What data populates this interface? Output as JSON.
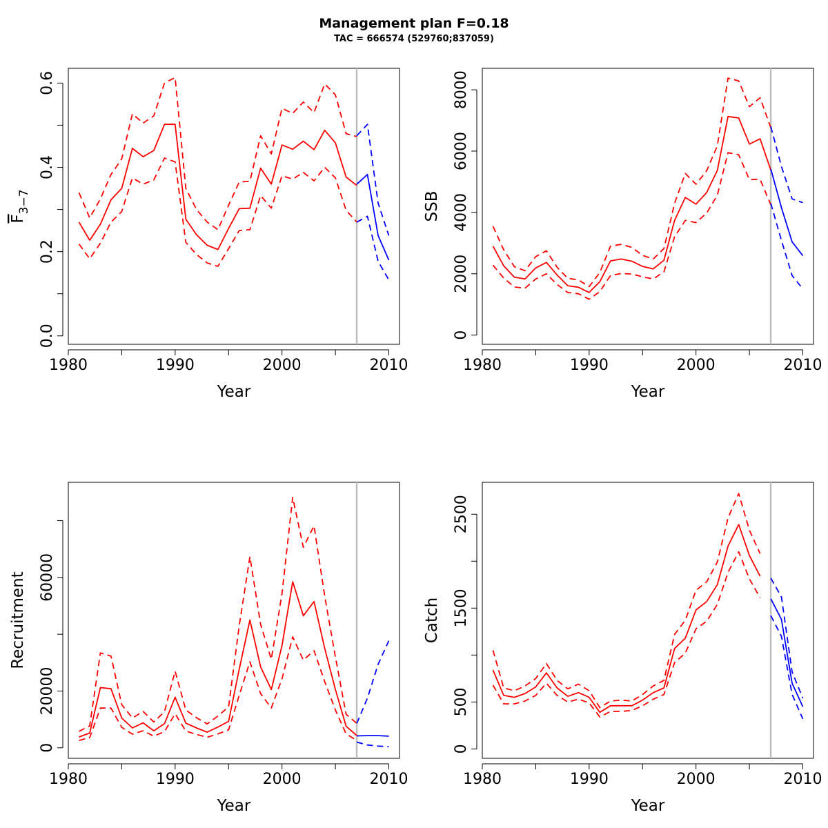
{
  "figure": {
    "title": "Management plan F=0.18",
    "subtitle": "TAC = 666574 (529760;837059)"
  },
  "colors": {
    "history": "#ff0000",
    "projection": "#0000ff",
    "divider": "#bebebe",
    "frame": "#000000"
  },
  "chart_data": [
    {
      "type": "line",
      "id": "fbar",
      "xlabel": "Year",
      "ylabel_main": "F",
      "ylabel_sub": "3−7",
      "ylabel_overline": true,
      "xlim": [
        1980,
        2011
      ],
      "ylim": [
        -0.02,
        0.635
      ],
      "xticks": [
        1980,
        1985,
        1990,
        1995,
        2000,
        2005,
        2010
      ],
      "xticklabels": [
        "1980",
        "",
        "1990",
        "",
        "2000",
        "",
        "2010"
      ],
      "yticks": [
        0,
        0.1,
        0.2,
        0.3,
        0.4,
        0.5,
        0.6
      ],
      "yticklabels": [
        "0.0",
        "",
        "0.2",
        "",
        "0.4",
        "",
        "0.6"
      ],
      "divider_year": 2007,
      "series": [
        {
          "role": "history",
          "style": "solid",
          "x": [
            1981,
            1982,
            1983,
            1984,
            1985,
            1986,
            1987,
            1988,
            1989,
            1990,
            1991,
            1992,
            1993,
            1994,
            1995,
            1996,
            1997,
            1998,
            1999,
            2000,
            2001,
            2002,
            2003,
            2004,
            2005,
            2006,
            2007
          ],
          "y": [
            0.27,
            0.227,
            0.265,
            0.323,
            0.35,
            0.445,
            0.425,
            0.44,
            0.502,
            0.502,
            0.277,
            0.24,
            0.215,
            0.205,
            0.255,
            0.302,
            0.303,
            0.398,
            0.36,
            0.453,
            0.443,
            0.462,
            0.442,
            0.488,
            0.458,
            0.377,
            0.357
          ]
        },
        {
          "role": "history",
          "style": "dashed",
          "x": [
            1981,
            1982,
            1983,
            1984,
            1985,
            1986,
            1987,
            1988,
            1989,
            1990,
            1991,
            1992,
            1993,
            1994,
            1995,
            1996,
            1997,
            1998,
            1999,
            2000,
            2001,
            2002,
            2003,
            2004,
            2005,
            2006,
            2007
          ],
          "y": [
            0.34,
            0.28,
            0.325,
            0.383,
            0.42,
            0.527,
            0.505,
            0.522,
            0.6,
            0.613,
            0.35,
            0.3,
            0.27,
            0.252,
            0.31,
            0.365,
            0.367,
            0.475,
            0.432,
            0.54,
            0.528,
            0.555,
            0.53,
            0.598,
            0.572,
            0.48,
            0.473
          ]
        },
        {
          "role": "history",
          "style": "dashed",
          "x": [
            1981,
            1982,
            1983,
            1984,
            1985,
            1986,
            1987,
            1988,
            1989,
            1990,
            1991,
            1992,
            1993,
            1994,
            1995,
            1996,
            1997,
            1998,
            1999,
            2000,
            2001,
            2002,
            2003,
            2004,
            2005,
            2006,
            2007
          ],
          "y": [
            0.218,
            0.183,
            0.22,
            0.27,
            0.295,
            0.375,
            0.36,
            0.37,
            0.422,
            0.413,
            0.222,
            0.193,
            0.173,
            0.165,
            0.207,
            0.25,
            0.252,
            0.333,
            0.303,
            0.38,
            0.372,
            0.388,
            0.368,
            0.4,
            0.375,
            0.298,
            0.27
          ]
        },
        {
          "role": "projection",
          "style": "solid",
          "x": [
            2007,
            2008,
            2009,
            2010
          ],
          "y": [
            0.36,
            0.383,
            0.238,
            0.18
          ]
        },
        {
          "role": "projection",
          "style": "dashed",
          "x": [
            2007,
            2008,
            2009,
            2010
          ],
          "y": [
            0.475,
            0.502,
            0.315,
            0.238
          ]
        },
        {
          "role": "projection",
          "style": "dashed",
          "x": [
            2007,
            2008,
            2009,
            2010
          ],
          "y": [
            0.27,
            0.284,
            0.177,
            0.133
          ]
        }
      ]
    },
    {
      "type": "line",
      "id": "ssb",
      "xlabel": "Year",
      "ylabel": "SSB",
      "xlim": [
        1980,
        2011
      ],
      "ylim": [
        -300,
        8700
      ],
      "xticks": [
        1980,
        1985,
        1990,
        1995,
        2000,
        2005,
        2010
      ],
      "xticklabels": [
        "1980",
        "",
        "1990",
        "",
        "2000",
        "",
        "2010"
      ],
      "yticks": [
        0,
        2000,
        4000,
        6000,
        8000
      ],
      "yticklabels": [
        "0",
        "2000",
        "4000",
        "6000",
        "8000"
      ],
      "divider_year": 2007,
      "series": [
        {
          "role": "history",
          "style": "solid",
          "x": [
            1981,
            1982,
            1983,
            1984,
            1985,
            1986,
            1987,
            1988,
            1989,
            1990,
            1991,
            1992,
            1993,
            1994,
            1995,
            1996,
            1997,
            1998,
            1999,
            2000,
            2001,
            2002,
            2003,
            2004,
            2005,
            2006,
            2007
          ],
          "y": [
            2900,
            2260,
            1890,
            1830,
            2190,
            2370,
            1960,
            1610,
            1560,
            1390,
            1740,
            2420,
            2480,
            2410,
            2240,
            2160,
            2440,
            3740,
            4490,
            4270,
            4650,
            5370,
            7130,
            7080,
            6230,
            6400,
            5380
          ]
        },
        {
          "role": "history",
          "style": "dashed",
          "x": [
            1981,
            1982,
            1983,
            1984,
            1985,
            1986,
            1987,
            1988,
            1989,
            1990,
            1991,
            1992,
            1993,
            1994,
            1995,
            1996,
            1997,
            1998,
            1999,
            2000,
            2001,
            2002,
            2003,
            2004,
            2005,
            2006,
            2007
          ],
          "y": [
            3550,
            2780,
            2230,
            2100,
            2560,
            2750,
            2210,
            1850,
            1800,
            1580,
            2040,
            2900,
            2960,
            2860,
            2600,
            2480,
            2820,
            4300,
            5270,
            4920,
            5360,
            6170,
            8380,
            8290,
            7450,
            7740,
            6760
          ]
        },
        {
          "role": "history",
          "style": "dashed",
          "x": [
            1981,
            1982,
            1983,
            1984,
            1985,
            1986,
            1987,
            1988,
            1989,
            1990,
            1991,
            1992,
            1993,
            1994,
            1995,
            1996,
            1997,
            1998,
            1999,
            2000,
            2001,
            2002,
            2003,
            2004,
            2005,
            2006,
            2007
          ],
          "y": [
            2280,
            1860,
            1570,
            1530,
            1830,
            2000,
            1650,
            1390,
            1350,
            1170,
            1420,
            1940,
            2010,
            1990,
            1900,
            1830,
            2060,
            3210,
            3740,
            3670,
            3980,
            4560,
            5950,
            5880,
            5070,
            5080,
            4250
          ]
        },
        {
          "role": "projection",
          "style": "solid",
          "x": [
            2007,
            2008,
            2009,
            2010
          ],
          "y": [
            5420,
            4160,
            3040,
            2590
          ]
        },
        {
          "role": "projection",
          "style": "dashed",
          "x": [
            2007,
            2008,
            2009,
            2010
          ],
          "y": [
            6800,
            5500,
            4440,
            4320
          ]
        },
        {
          "role": "projection",
          "style": "dashed",
          "x": [
            2007,
            2008,
            2009,
            2010
          ],
          "y": [
            4300,
            3090,
            1940,
            1510
          ]
        }
      ]
    },
    {
      "type": "line",
      "id": "recruitment",
      "xlabel": "Year",
      "ylabel": "Recruitment",
      "xlim": [
        1980,
        2011
      ],
      "ylim": [
        -3700,
        93500
      ],
      "xticks": [
        1980,
        1985,
        1990,
        1995,
        2000,
        2005,
        2010
      ],
      "xticklabels": [
        "1980",
        "",
        "1990",
        "",
        "2000",
        "",
        "2010"
      ],
      "yticks": [
        0,
        20000,
        40000,
        60000,
        80000
      ],
      "yticklabels": [
        "0",
        "20000",
        "",
        "60000",
        ""
      ],
      "divider_year": 2007,
      "series": [
        {
          "role": "history",
          "style": "solid",
          "x": [
            1981,
            1982,
            1983,
            1984,
            1985,
            1986,
            1987,
            1988,
            1989,
            1990,
            1991,
            1992,
            1993,
            1994,
            1995,
            1996,
            1997,
            1998,
            1999,
            2000,
            2001,
            2002,
            2003,
            2004,
            2005,
            2006,
            2007
          ],
          "y": [
            3800,
            5200,
            21200,
            20800,
            10500,
            7000,
            8800,
            6000,
            8500,
            17800,
            8700,
            7000,
            5500,
            7300,
            9300,
            27700,
            45000,
            28500,
            20500,
            36000,
            58500,
            46500,
            51500,
            35000,
            20500,
            7600,
            4300
          ]
        },
        {
          "role": "history",
          "style": "dashed",
          "x": [
            1981,
            1982,
            1983,
            1984,
            1985,
            1986,
            1987,
            1988,
            1989,
            1990,
            1991,
            1992,
            1993,
            1994,
            1995,
            1996,
            1997,
            1998,
            1999,
            2000,
            2001,
            2002,
            2003,
            2004,
            2005,
            2006,
            2007
          ],
          "y": [
            5800,
            7700,
            33400,
            32300,
            15200,
            10500,
            12800,
            9100,
            12700,
            27000,
            13300,
            10600,
            8400,
            11200,
            14400,
            43000,
            67300,
            43500,
            31200,
            54300,
            88200,
            70600,
            78200,
            53400,
            32000,
            11800,
            8600
          ]
        },
        {
          "role": "history",
          "style": "dashed",
          "x": [
            1981,
            1982,
            1983,
            1984,
            1985,
            1986,
            1987,
            1988,
            1989,
            1990,
            1991,
            1992,
            1993,
            1994,
            1995,
            1996,
            1997,
            1998,
            1999,
            2000,
            2001,
            2002,
            2003,
            2004,
            2005,
            2006,
            2007
          ],
          "y": [
            2600,
            3600,
            14000,
            14000,
            7200,
            4800,
            6000,
            4100,
            5700,
            12000,
            5900,
            4700,
            3700,
            4900,
            6300,
            18500,
            30300,
            19100,
            14000,
            24300,
            39100,
            30900,
            34200,
            23300,
            13300,
            4900,
            2600
          ]
        },
        {
          "role": "projection",
          "style": "solid",
          "x": [
            2007,
            2008,
            2009,
            2010
          ],
          "y": [
            4200,
            4300,
            4300,
            4100
          ]
        },
        {
          "role": "projection",
          "style": "dashed",
          "x": [
            2007,
            2008,
            2009,
            2010
          ],
          "y": [
            8600,
            17500,
            29400,
            37700
          ]
        },
        {
          "role": "projection",
          "style": "dashed",
          "x": [
            2007,
            2008,
            2009,
            2010
          ],
          "y": [
            2000,
            1000,
            600,
            400
          ]
        }
      ]
    },
    {
      "type": "line",
      "id": "catch",
      "xlabel": "Year",
      "ylabel": "Catch",
      "xlim": [
        1980,
        2011
      ],
      "ylim": [
        -100,
        2840
      ],
      "xticks": [
        1980,
        1985,
        1990,
        1995,
        2000,
        2005,
        2010
      ],
      "xticklabels": [
        "1980",
        "",
        "1990",
        "",
        "2000",
        "",
        "2010"
      ],
      "yticks": [
        0,
        500,
        1000,
        1500,
        2000,
        2500
      ],
      "yticklabels": [
        "0",
        "500",
        "",
        "1500",
        "",
        "2500"
      ],
      "divider_year": 2007,
      "series": [
        {
          "role": "history",
          "style": "solid",
          "x": [
            1981,
            1982,
            1983,
            1984,
            1985,
            1986,
            1987,
            1988,
            1989,
            1990,
            1991,
            1992,
            1993,
            1994,
            1995,
            1996,
            1997,
            1998,
            1999,
            2000,
            2001,
            2002,
            2003,
            2004,
            2005,
            2006
          ],
          "y": [
            840,
            570,
            550,
            590,
            660,
            810,
            650,
            560,
            600,
            550,
            390,
            460,
            460,
            460,
            520,
            600,
            650,
            1070,
            1180,
            1480,
            1570,
            1750,
            2160,
            2390,
            2060,
            1840
          ]
        },
        {
          "role": "history",
          "style": "dashed",
          "x": [
            1981,
            1982,
            1983,
            1984,
            1985,
            1986,
            1987,
            1988,
            1989,
            1990,
            1991,
            1992,
            1993,
            1994,
            1995,
            1996,
            1997,
            1998,
            1999,
            2000,
            2001,
            2002,
            2003,
            2004,
            2005,
            2006
          ],
          "y": [
            1050,
            650,
            620,
            670,
            750,
            910,
            730,
            640,
            690,
            620,
            440,
            510,
            520,
            510,
            580,
            670,
            730,
            1220,
            1370,
            1690,
            1780,
            1990,
            2460,
            2720,
            2330,
            2080
          ]
        },
        {
          "role": "history",
          "style": "dashed",
          "x": [
            1981,
            1982,
            1983,
            1984,
            1985,
            1986,
            1987,
            1988,
            1989,
            1990,
            1991,
            1992,
            1993,
            1994,
            1995,
            1996,
            1997,
            1998,
            1999,
            2000,
            2001,
            2002,
            2003,
            2004,
            2005,
            2006
          ],
          "y": [
            680,
            480,
            480,
            510,
            570,
            700,
            570,
            500,
            530,
            490,
            340,
            400,
            400,
            410,
            460,
            530,
            580,
            920,
            1020,
            1280,
            1360,
            1540,
            1880,
            2100,
            1810,
            1610
          ]
        },
        {
          "role": "projection",
          "style": "solid",
          "x": [
            2007,
            2008,
            2009,
            2010
          ],
          "y": [
            1600,
            1380,
            700,
            450
          ]
        },
        {
          "role": "projection",
          "style": "dashed",
          "x": [
            2007,
            2008,
            2009,
            2010
          ],
          "y": [
            1820,
            1620,
            820,
            540
          ]
        },
        {
          "role": "projection",
          "style": "dashed",
          "x": [
            2007,
            2008,
            2009,
            2010
          ],
          "y": [
            1420,
            1200,
            580,
            320
          ]
        }
      ]
    }
  ]
}
